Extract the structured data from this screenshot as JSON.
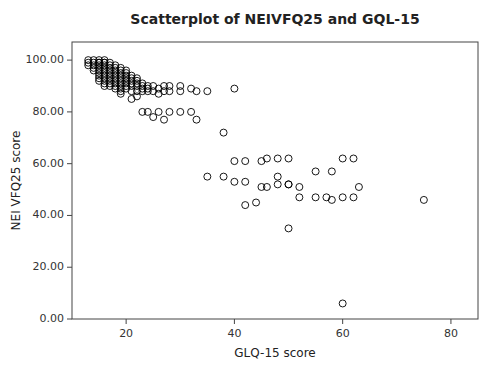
{
  "chart_data": {
    "type": "scatter",
    "title": "Scatterplot of NEIVFQ25 and GQL-15",
    "xlabel": "GLQ-15 score",
    "ylabel": "NEI VFQ25 score",
    "xlim": [
      10,
      85
    ],
    "ylim": [
      0,
      107
    ],
    "xticks": [
      20,
      40,
      60,
      80
    ],
    "yticks": [
      {
        "value": 0,
        "label": "0.00"
      },
      {
        "value": 20,
        "label": "20.00"
      },
      {
        "value": 40,
        "label": "40.00"
      },
      {
        "value": 60,
        "label": "60.00"
      },
      {
        "value": 80,
        "label": "80.00"
      },
      {
        "value": 100,
        "label": "100.00"
      }
    ],
    "grid": false,
    "marker": "open-circle",
    "color": "black",
    "x": [
      13,
      13,
      13,
      14,
      14,
      14,
      14,
      14,
      15,
      15,
      15,
      15,
      15,
      15,
      15,
      15,
      15,
      15,
      16,
      16,
      16,
      16,
      16,
      16,
      16,
      16,
      16,
      16,
      16,
      16,
      17,
      17,
      17,
      17,
      17,
      17,
      17,
      17,
      17,
      17,
      18,
      18,
      18,
      18,
      18,
      18,
      18,
      18,
      18,
      18,
      19,
      19,
      19,
      19,
      19,
      19,
      19,
      19,
      19,
      19,
      19,
      20,
      20,
      20,
      20,
      20,
      20,
      20,
      20,
      21,
      21,
      21,
      21,
      21,
      21,
      21,
      22,
      22,
      22,
      22,
      22,
      22,
      23,
      23,
      23,
      23,
      23,
      24,
      24,
      24,
      24,
      25,
      25,
      25,
      26,
      26,
      26,
      27,
      27,
      27,
      28,
      28,
      28,
      30,
      30,
      30,
      32,
      32,
      33,
      33,
      35,
      35,
      38,
      38,
      40,
      40,
      40,
      42,
      42,
      42,
      44,
      45,
      45,
      46,
      46,
      48,
      48,
      48,
      50,
      50,
      50,
      50,
      52,
      52,
      55,
      55,
      57,
      58,
      58,
      60,
      60,
      60,
      62,
      62,
      63,
      75
    ],
    "y": [
      100,
      99,
      98,
      100,
      99,
      98,
      97,
      96,
      100,
      99,
      99,
      98,
      97,
      96,
      95,
      94,
      93,
      92,
      100,
      99,
      99,
      98,
      97,
      96,
      95,
      94,
      93,
      92,
      91,
      90,
      99,
      98,
      97,
      96,
      95,
      94,
      93,
      92,
      91,
      90,
      98,
      97,
      96,
      95,
      94,
      93,
      92,
      91,
      90,
      89,
      97,
      96,
      95,
      94,
      93,
      92,
      91,
      90,
      89,
      88,
      87,
      96,
      95,
      94,
      93,
      92,
      91,
      90,
      89,
      94,
      93,
      92,
      91,
      90,
      88,
      85,
      93,
      92,
      91,
      90,
      88,
      86,
      91,
      90,
      89,
      88,
      80,
      90,
      89,
      88,
      80,
      90,
      88,
      78,
      89,
      87,
      80,
      90,
      88,
      77,
      90,
      88,
      80,
      90,
      88,
      80,
      89,
      80,
      88,
      77,
      88,
      55,
      72,
      55,
      89,
      61,
      53,
      61,
      53,
      44,
      45,
      61,
      51,
      62,
      51,
      62,
      55,
      52,
      62,
      52,
      52,
      35,
      51,
      47,
      57,
      47,
      47,
      57,
      46,
      62,
      47,
      6,
      62,
      47,
      51,
      46
    ]
  }
}
